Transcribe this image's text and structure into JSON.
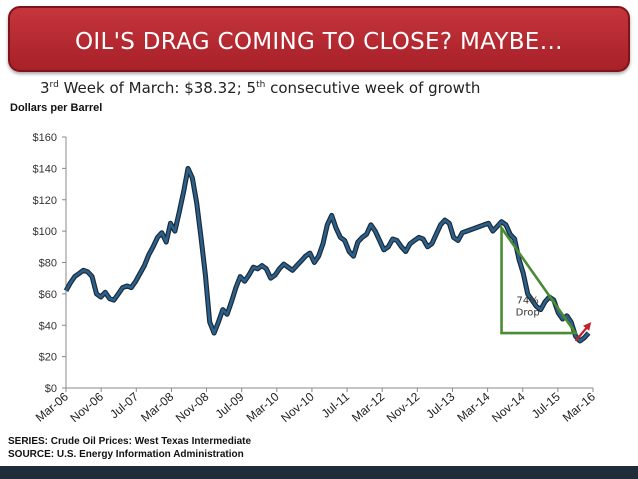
{
  "header": {
    "title": "OIL'S DRAG COMING TO CLOSE? MAYBE…"
  },
  "subtitle": {
    "ord1": "3",
    "sup1": "rd",
    "mid": " Week of March: $38.32; ",
    "ord2": "5",
    "sup2": "th",
    "rest": " consecutive week of growth"
  },
  "footer": {
    "series": "SERIES: Crude Oil Prices: West Texas Intermediate",
    "source": "SOURCE: U.S. Energy Information Administration"
  },
  "colors": {
    "line": "#2c5f8a",
    "line_outline": "#1a2c3a",
    "triangle": "#4a8c35",
    "arrow": "#c0222c",
    "banner": "#b3272e"
  },
  "chart_data": {
    "type": "line",
    "title": "",
    "ylabel": "Dollars per Barrel",
    "xlabel": "",
    "ylim": [
      0,
      160
    ],
    "xlim": [
      0,
      121
    ],
    "yticks": [
      0,
      20,
      40,
      60,
      80,
      100,
      120,
      140,
      160
    ],
    "ytick_labels": [
      "$0",
      "$20",
      "$40",
      "$60",
      "$80",
      "$100",
      "$120",
      "$140",
      "$160"
    ],
    "xtick_labels": [
      "Mar-06",
      "Nov-06",
      "Jul-07",
      "Mar-08",
      "Nov-08",
      "Jul-09",
      "Mar-10",
      "Nov-10",
      "Jul-11",
      "Mar-12",
      "Nov-12",
      "Jul-13",
      "Mar-14",
      "Nov-14",
      "Jul-15",
      "Mar-16"
    ],
    "annotation": {
      "text_line1": "74%",
      "text_line2": "Drop",
      "percent": 74
    },
    "triangle": {
      "x_start": 100,
      "x_end": 117,
      "y_high": 102,
      "y_low": 35
    },
    "arrow": {
      "from": [
        117,
        30
      ],
      "to": [
        120,
        40
      ]
    },
    "series": [
      {
        "name": "Crude Oil Prices: West Texas Intermediate",
        "unit": "Dollars per Barrel",
        "x": [
          0,
          1,
          2,
          3,
          4,
          5,
          6,
          7,
          8,
          9,
          10,
          11,
          12,
          13,
          14,
          15,
          16,
          17,
          18,
          19,
          20,
          21,
          22,
          23,
          24,
          25,
          26,
          27,
          28,
          29,
          30,
          31,
          32,
          33,
          34,
          35,
          36,
          37,
          38,
          39,
          40,
          41,
          42,
          43,
          44,
          45,
          46,
          47,
          48,
          49,
          50,
          51,
          52,
          53,
          54,
          55,
          56,
          57,
          58,
          59,
          60,
          61,
          62,
          63,
          64,
          65,
          66,
          67,
          68,
          69,
          70,
          71,
          72,
          73,
          74,
          75,
          76,
          77,
          78,
          79,
          80,
          81,
          82,
          83,
          84,
          85,
          86,
          87,
          88,
          89,
          90,
          91,
          92,
          93,
          94,
          95,
          96,
          97,
          98,
          99,
          100,
          101,
          102,
          103,
          104,
          105,
          106,
          107,
          108,
          109,
          110,
          111,
          112,
          113,
          114,
          115,
          116,
          117,
          118,
          119,
          120
        ],
        "values": [
          62,
          67,
          71,
          73,
          75,
          74,
          71,
          60,
          58,
          61,
          57,
          56,
          60,
          64,
          65,
          64,
          68,
          73,
          78,
          85,
          90,
          96,
          99,
          93,
          105,
          100,
          112,
          125,
          140,
          134,
          118,
          96,
          72,
          42,
          35,
          42,
          50,
          47,
          55,
          64,
          71,
          68,
          72,
          77,
          76,
          78,
          76,
          70,
          72,
          76,
          79,
          77,
          75,
          78,
          81,
          84,
          86,
          80,
          84,
          92,
          104,
          110,
          102,
          96,
          94,
          87,
          84,
          93,
          96,
          98,
          104,
          100,
          94,
          88,
          90,
          95,
          94,
          90,
          87,
          92,
          94,
          96,
          95,
          90,
          92,
          98,
          104,
          107,
          105,
          96,
          94,
          99,
          100,
          101,
          102,
          103,
          104,
          105,
          100,
          103,
          106,
          104,
          98,
          95,
          82,
          73,
          60,
          56,
          52,
          50,
          55,
          58,
          56,
          48,
          44,
          46,
          42,
          33,
          30,
          32,
          35
        ]
      }
    ]
  }
}
